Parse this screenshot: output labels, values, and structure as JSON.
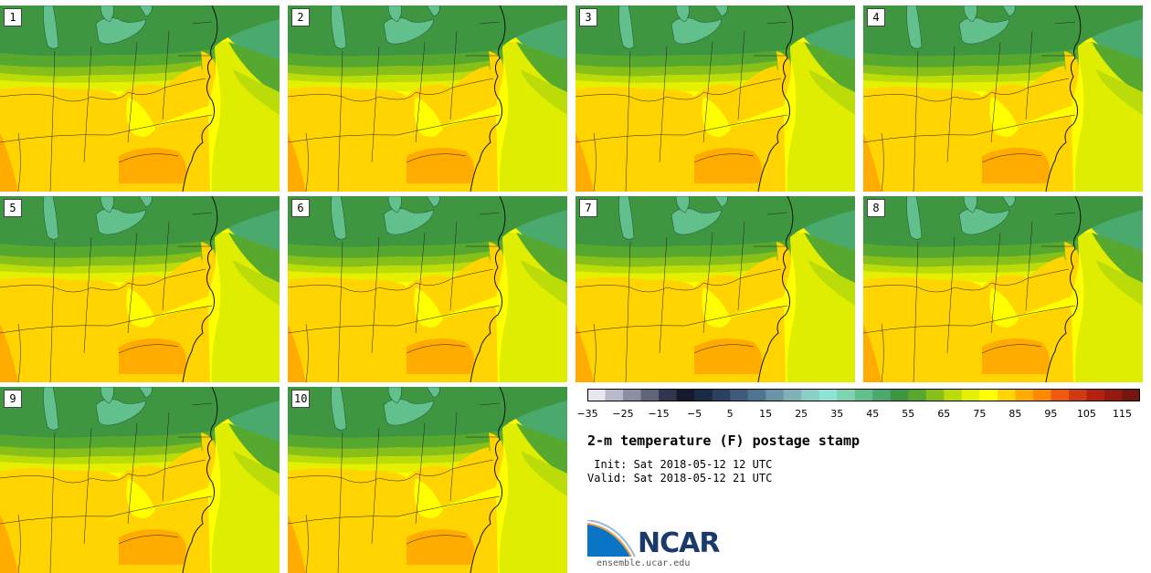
{
  "panels": [
    {
      "label": "1"
    },
    {
      "label": "2"
    },
    {
      "label": "3"
    },
    {
      "label": "4"
    },
    {
      "label": "5"
    },
    {
      "label": "6"
    },
    {
      "label": "7"
    },
    {
      "label": "8"
    },
    {
      "label": "9"
    },
    {
      "label": "10"
    }
  ],
  "colorbar": {
    "tick_labels": [
      "−35",
      "−25",
      "−15",
      "−5",
      "5",
      "15",
      "25",
      "35",
      "45",
      "55",
      "65",
      "75",
      "85",
      "95",
      "105",
      "115"
    ],
    "colors": [
      "#e6e6f0",
      "#b9b9cc",
      "#8d8da5",
      "#5e6678",
      "#30364d",
      "#141a2e",
      "#1a2b44",
      "#2c4060",
      "#3f5a7a",
      "#4f7590",
      "#6a94a6",
      "#80b0b8",
      "#8ccfc8",
      "#8fe3d2",
      "#7fd3b1",
      "#62c08d",
      "#4aa96c",
      "#3e9740",
      "#56a82e",
      "#88c01a",
      "#bcdc0a",
      "#e4f000",
      "#ffff00",
      "#ffd400",
      "#ffab00",
      "#ff8a00",
      "#ef5a10",
      "#d13a10",
      "#b5210f",
      "#941a10",
      "#74150e"
    ]
  },
  "title": "2-m temperature (F) postage stamp",
  "init": " Init: Sat 2018-05-12 12 UTC",
  "valid": "Valid: Sat 2018-05-12 21 UTC",
  "logo": {
    "text": "NCAR",
    "url": "ensemble.ucar.edu"
  }
}
